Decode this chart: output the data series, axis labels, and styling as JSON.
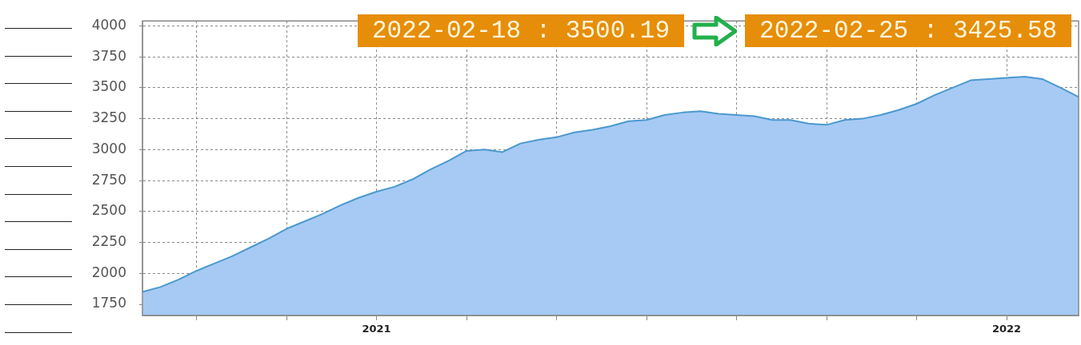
{
  "chart_data": {
    "type": "area",
    "categories": [
      null,
      null,
      null,
      null,
      null,
      null,
      null,
      null,
      null,
      null,
      null,
      null,
      null,
      "2021",
      null,
      null,
      null,
      null,
      null,
      null,
      null,
      null,
      null,
      null,
      null,
      null,
      null,
      null,
      null,
      null,
      null,
      null,
      null,
      null,
      null,
      null,
      null,
      null,
      null,
      null,
      null,
      null,
      null,
      null,
      null,
      null,
      null,
      null,
      "2022",
      null,
      null,
      null,
      null
    ],
    "series": [
      {
        "color": "#a6caf4",
        "values": [
          1850,
          1890,
          1950,
          2020,
          2080,
          2140,
          2210,
          2280,
          2360,
          2420,
          2480,
          2550,
          2610,
          2660,
          2700,
          2760,
          2840,
          2910,
          2990,
          3000,
          2980,
          3050,
          3080,
          3100,
          3140,
          3160,
          3190,
          3230,
          3240,
          3280,
          3300,
          3310,
          3290,
          3280,
          3270,
          3240,
          3240,
          3210,
          3200,
          3240,
          3250,
          3280,
          3320,
          3370,
          3440,
          3500,
          3560,
          3570,
          3580,
          3590,
          3570,
          3500.19,
          3425.58
        ]
      }
    ],
    "ylim": [
      1660,
      4040
    ],
    "yticks": [
      1750,
      2000,
      2250,
      2500,
      2750,
      3000,
      3250,
      3500,
      3750,
      4000
    ],
    "grid": true,
    "annotations": [
      "2022-02-18 : 3500.19",
      "2022-02-25 : 3425.58"
    ]
  }
}
